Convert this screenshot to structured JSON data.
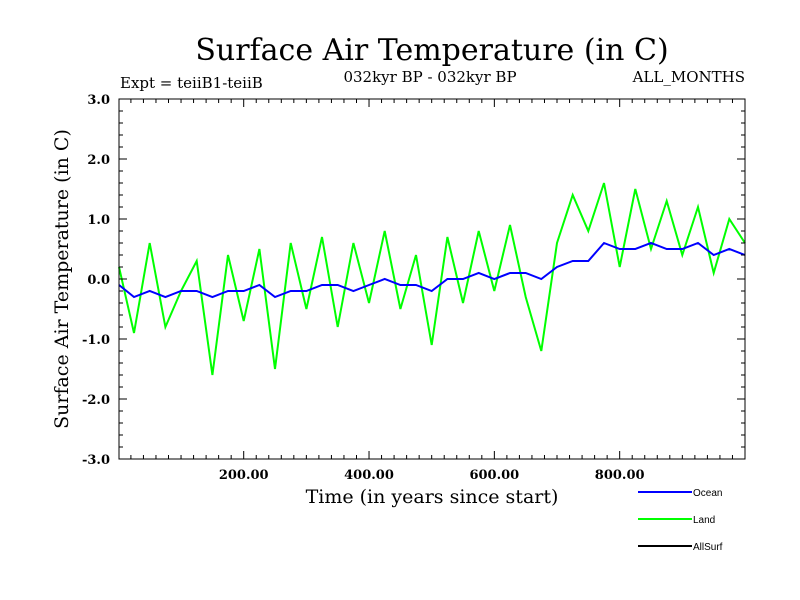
{
  "chart_data": {
    "type": "line",
    "title": "Surface Air Temperature (in C)",
    "subtitle_left": "Expt = teiiB1-teiiB",
    "subtitle_center": "032kyr BP - 032kyr BP",
    "subtitle_right": "ALL_MONTHS",
    "xlabel": "Time (in years since start)",
    "ylabel": "Surface Air Temperature (in C)",
    "xlim": [
      1,
      1000
    ],
    "ylim": [
      -3.0,
      3.0
    ],
    "x_ticks": [
      {
        "value": 200,
        "label": "200.00"
      },
      {
        "value": 400,
        "label": "400.00"
      },
      {
        "value": 600,
        "label": "600.00"
      },
      {
        "value": 800,
        "label": "800.00"
      }
    ],
    "y_ticks": [
      {
        "value": 3.0,
        "label": "3.0"
      },
      {
        "value": 2.0,
        "label": "2.0"
      },
      {
        "value": 1.0,
        "label": "1.0"
      },
      {
        "value": 0.0,
        "label": "0.0"
      },
      {
        "value": -1.0,
        "label": "-1.0"
      },
      {
        "value": -2.0,
        "label": "-2.0"
      },
      {
        "value": -3.0,
        "label": "-3.0"
      }
    ],
    "grid": false,
    "legend_position": "bottom-right",
    "series": [
      {
        "name": "Land",
        "color": "#00ff00",
        "x": [
          1,
          25,
          50,
          75,
          100,
          125,
          150,
          175,
          200,
          225,
          250,
          275,
          300,
          325,
          350,
          375,
          400,
          425,
          450,
          475,
          500,
          525,
          550,
          575,
          600,
          625,
          650,
          675,
          700,
          725,
          750,
          775,
          800,
          825,
          850,
          875,
          900,
          925,
          950,
          975,
          1000
        ],
        "y": [
          0.2,
          -0.9,
          0.6,
          -0.8,
          -0.2,
          0.3,
          -1.6,
          0.4,
          -0.7,
          0.5,
          -1.5,
          0.6,
          -0.5,
          0.7,
          -0.8,
          0.6,
          -0.4,
          0.8,
          -0.5,
          0.4,
          -1.1,
          0.7,
          -0.4,
          0.8,
          -0.2,
          0.9,
          -0.3,
          -1.2,
          0.6,
          1.4,
          0.8,
          1.6,
          0.2,
          1.5,
          0.5,
          1.3,
          0.4,
          1.2,
          0.1,
          1.0,
          0.6
        ]
      },
      {
        "name": "Ocean",
        "color": "#0000ff",
        "x": [
          1,
          25,
          50,
          75,
          100,
          125,
          150,
          175,
          200,
          225,
          250,
          275,
          300,
          325,
          350,
          375,
          400,
          425,
          450,
          475,
          500,
          525,
          550,
          575,
          600,
          625,
          650,
          675,
          700,
          725,
          750,
          775,
          800,
          825,
          850,
          875,
          900,
          925,
          950,
          975,
          1000
        ],
        "y": [
          -0.1,
          -0.3,
          -0.2,
          -0.3,
          -0.2,
          -0.2,
          -0.3,
          -0.2,
          -0.2,
          -0.1,
          -0.3,
          -0.2,
          -0.2,
          -0.1,
          -0.1,
          -0.2,
          -0.1,
          0.0,
          -0.1,
          -0.1,
          -0.2,
          0.0,
          0.0,
          0.1,
          0.0,
          0.1,
          0.1,
          0.0,
          0.2,
          0.3,
          0.3,
          0.6,
          0.5,
          0.5,
          0.6,
          0.5,
          0.5,
          0.6,
          0.4,
          0.5,
          0.4
        ]
      },
      {
        "name": "AllSurf",
        "color": "#000000",
        "x": [],
        "y": []
      }
    ]
  }
}
